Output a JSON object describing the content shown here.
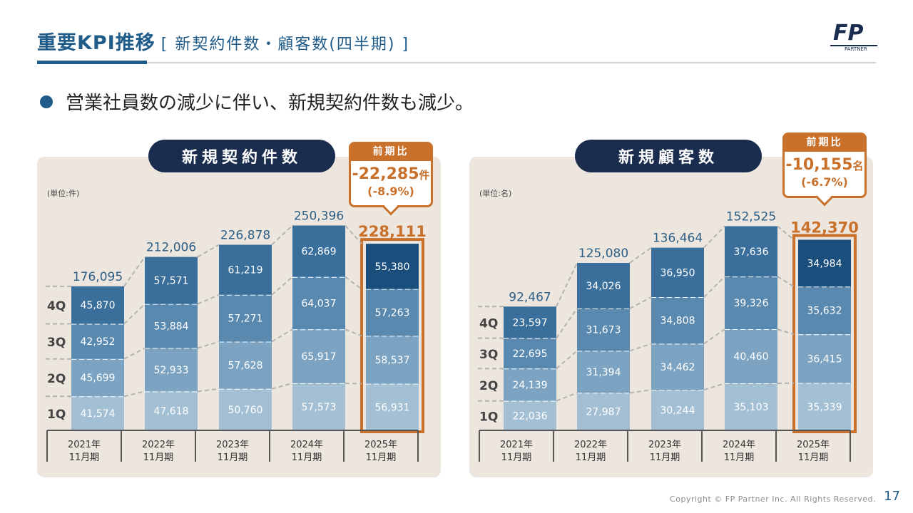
{
  "header": {
    "title": "重要KPI推移",
    "subtitle": "[ 新契約件数・顧客数(四半期) ]",
    "logo_text": "PARTNER"
  },
  "bullet": "営業社員数の減少に伴い、新規契約件数も減少。",
  "colors": {
    "q1": "#a3bfd4",
    "q2": "#7ca4c2",
    "q3": "#5a89b0",
    "q4": "#3a6f9c",
    "q4_current": "#194e7d",
    "accent": "#c9702a",
    "navy": "#1b2d4f"
  },
  "callouts": [
    {
      "head": "前期比",
      "value": "-22,285",
      "unit": "件",
      "pct": "(-8.9%)"
    },
    {
      "head": "前期比",
      "value": "-10,155",
      "unit": "名",
      "pct": "(-6.7%)"
    }
  ],
  "chart_data": [
    {
      "type": "bar",
      "title": "新規契約件数",
      "unit_label": "(単位:件)",
      "categories": [
        [
          "2021年",
          "11月期"
        ],
        [
          "2022年",
          "11月期"
        ],
        [
          "2023年",
          "11月期"
        ],
        [
          "2024年",
          "11月期"
        ],
        [
          "2025年",
          "11月期"
        ]
      ],
      "quarter_labels": [
        "1Q",
        "2Q",
        "3Q",
        "4Q"
      ],
      "series": [
        {
          "name": "1Q",
          "values": [
            41574,
            47618,
            50760,
            57573,
            56931
          ]
        },
        {
          "name": "2Q",
          "values": [
            45699,
            52933,
            57628,
            65917,
            58537
          ]
        },
        {
          "name": "3Q",
          "values": [
            42952,
            53884,
            57271,
            64037,
            57263
          ]
        },
        {
          "name": "4Q",
          "values": [
            45870,
            57571,
            61219,
            62869,
            55380
          ]
        }
      ],
      "totals": [
        176095,
        212006,
        226878,
        250396,
        228111
      ],
      "ylim": [
        0,
        270000
      ]
    },
    {
      "type": "bar",
      "title": "新規顧客数",
      "unit_label": "(単位:名)",
      "categories": [
        [
          "2021年",
          "11月期"
        ],
        [
          "2022年",
          "11月期"
        ],
        [
          "2023年",
          "11月期"
        ],
        [
          "2024年",
          "11月期"
        ],
        [
          "2025年",
          "11月期"
        ]
      ],
      "quarter_labels": [
        "1Q",
        "2Q",
        "3Q",
        "4Q"
      ],
      "series": [
        {
          "name": "1Q",
          "values": [
            22036,
            27987,
            30244,
            35103,
            35339
          ]
        },
        {
          "name": "2Q",
          "values": [
            24139,
            31394,
            34462,
            40460,
            36415
          ]
        },
        {
          "name": "3Q",
          "values": [
            22695,
            31673,
            34808,
            39326,
            35632
          ]
        },
        {
          "name": "4Q",
          "values": [
            23597,
            34026,
            36950,
            37636,
            34984
          ]
        }
      ],
      "totals": [
        92467,
        125080,
        136464,
        152525,
        142370
      ],
      "ylim": [
        0,
        165000
      ]
    }
  ],
  "footer": {
    "copyright": "Copyright © FP Partner Inc. All Rights Reserved.",
    "page": "17"
  }
}
